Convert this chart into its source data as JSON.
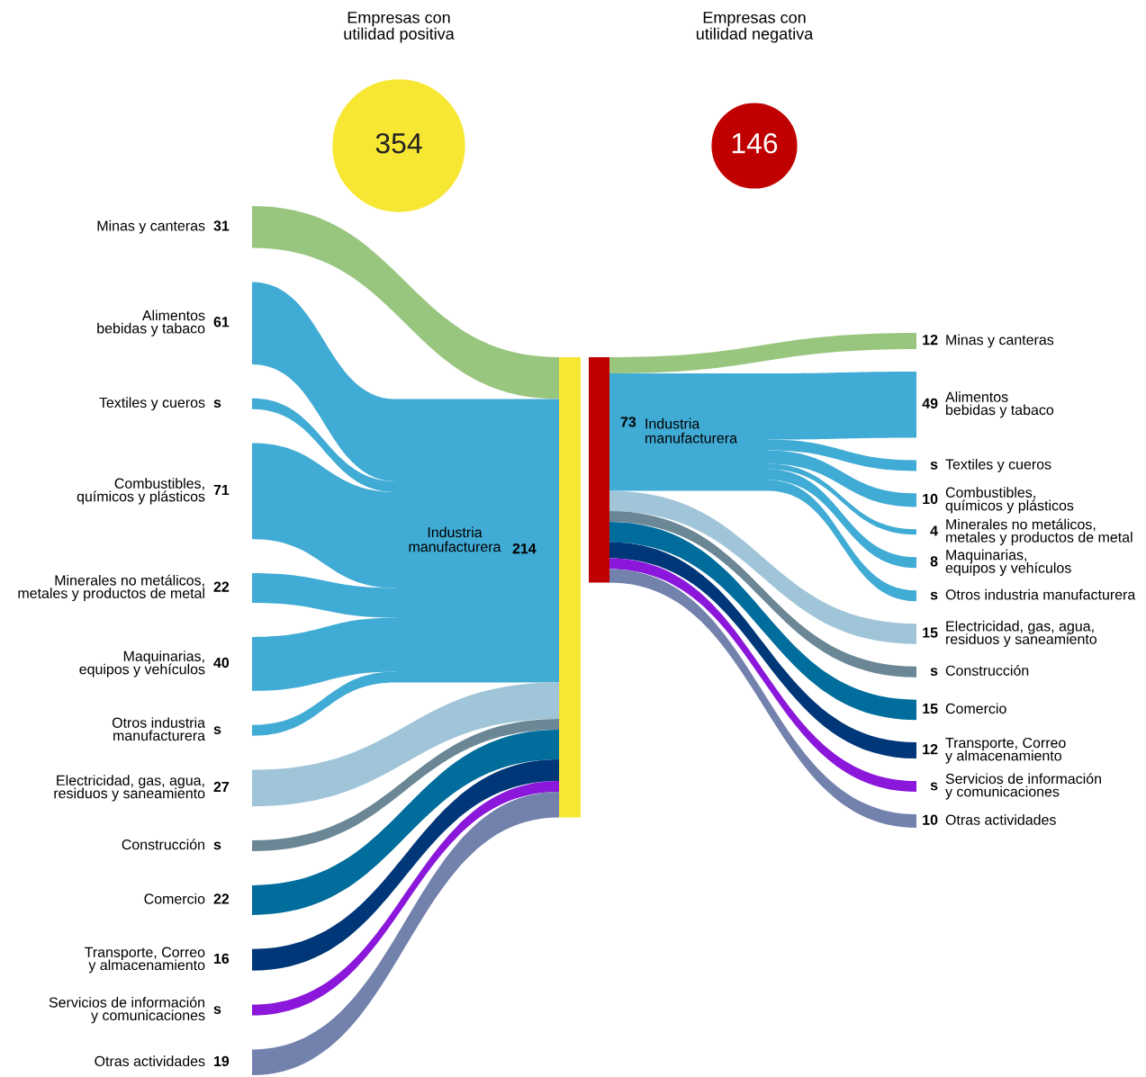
{
  "chart_data": [
    {
      "type": "other",
      "title": "Empresas con\nutilidad positiva",
      "categories": [
        "Minas y canteras",
        "Alimentos\nbebidas y tabaco",
        "Textiles y cueros",
        "Combustibles,\nquímicos y plásticos",
        "Minerales no metálicos,\nmetales y productos de metal",
        "Maquinarias,\nequipos y vehículos",
        "Otros industria\nmanufacturera",
        "Electricidad, gas, agua,\nresiduos y saneamiento",
        "Construcción",
        "Comercio",
        "Transporte, Correo\ny almacenamiento",
        "Servicios de información\ny comunicaciones",
        "Otras actividades"
      ],
      "colors": [
        "#99c67f",
        "#40abd4",
        "#40abd4",
        "#40abd4",
        "#40abd4",
        "#40abd4",
        "#40abd4",
        "#a0c5d9",
        "#6b8796",
        "#006d9c",
        "#003778",
        "#8a17d9",
        "#7381ad"
      ],
      "series": [
        {
          "color": "#f7e733",
          "values": [
            31,
            61,
            null,
            71,
            22,
            40,
            null,
            27,
            null,
            22,
            16,
            null,
            19
          ],
          "value_labels": [
            "31",
            "61",
            "s",
            "71",
            "22",
            "40",
            "s",
            "27",
            "s",
            "22",
            "16",
            "s",
            "19"
          ]
        }
      ],
      "totals": [
        "354"
      ],
      "annotations": [
        "Industria\nmanufacturera",
        "214"
      ]
    },
    {
      "type": "other",
      "title": "Empresas con\nutilidad negativa",
      "categories": [
        "Minas y canteras",
        "Alimentos\nbebidas y tabaco",
        "Textiles y cueros",
        "Combustibles,\nquímicos y plásticos",
        "Minerales no metálicos,\nmetales y productos de metal",
        "Maquinarias,\nequipos y vehículos",
        "Otros industria manufacturera",
        "Electricidad, gas, agua,\nresiduos y saneamiento",
        "Construcción",
        "Comercio",
        "Transporte, Correo\ny almacenamiento",
        "Servicios de información\ny comunicaciones",
        "Otras actividades"
      ],
      "colors": [
        "#99c67f",
        "#40abd4",
        "#40abd4",
        "#40abd4",
        "#40abd4",
        "#40abd4",
        "#40abd4",
        "#a0c5d9",
        "#6b8796",
        "#006d9c",
        "#003778",
        "#8a17d9",
        "#7381ad"
      ],
      "series": [
        {
          "color": "#c00000",
          "values": [
            12,
            49,
            null,
            10,
            4,
            8,
            null,
            15,
            null,
            15,
            12,
            null,
            10
          ],
          "value_labels": [
            "12",
            "49",
            "s",
            "10",
            "4",
            "8",
            "s",
            "15",
            "s",
            "15",
            "12",
            "s",
            "10"
          ]
        }
      ],
      "totals": [
        "146"
      ],
      "annotations": [
        "Industria\nmanufacturera",
        "73"
      ]
    }
  ]
}
